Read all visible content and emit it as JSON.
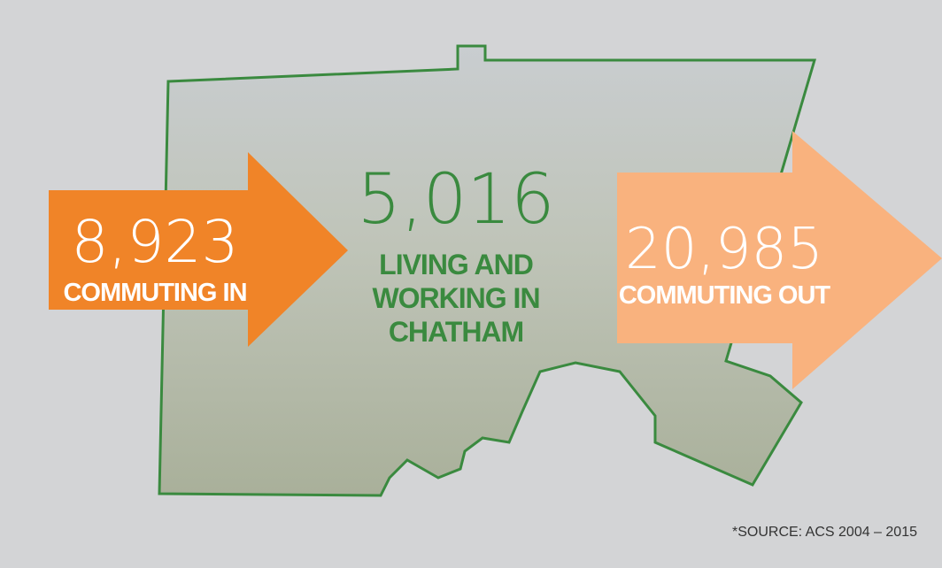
{
  "inflow": {
    "count": "8,923",
    "label": "COMMUTING IN"
  },
  "resident": {
    "count": "5,016",
    "label": [
      "LIVING AND",
      "WORKING IN",
      "CHATHAM"
    ]
  },
  "outflow": {
    "count": "20,985",
    "label": "COMMUTING OUT"
  },
  "source": "*SOURCE: ACS 2004 – 2015"
}
